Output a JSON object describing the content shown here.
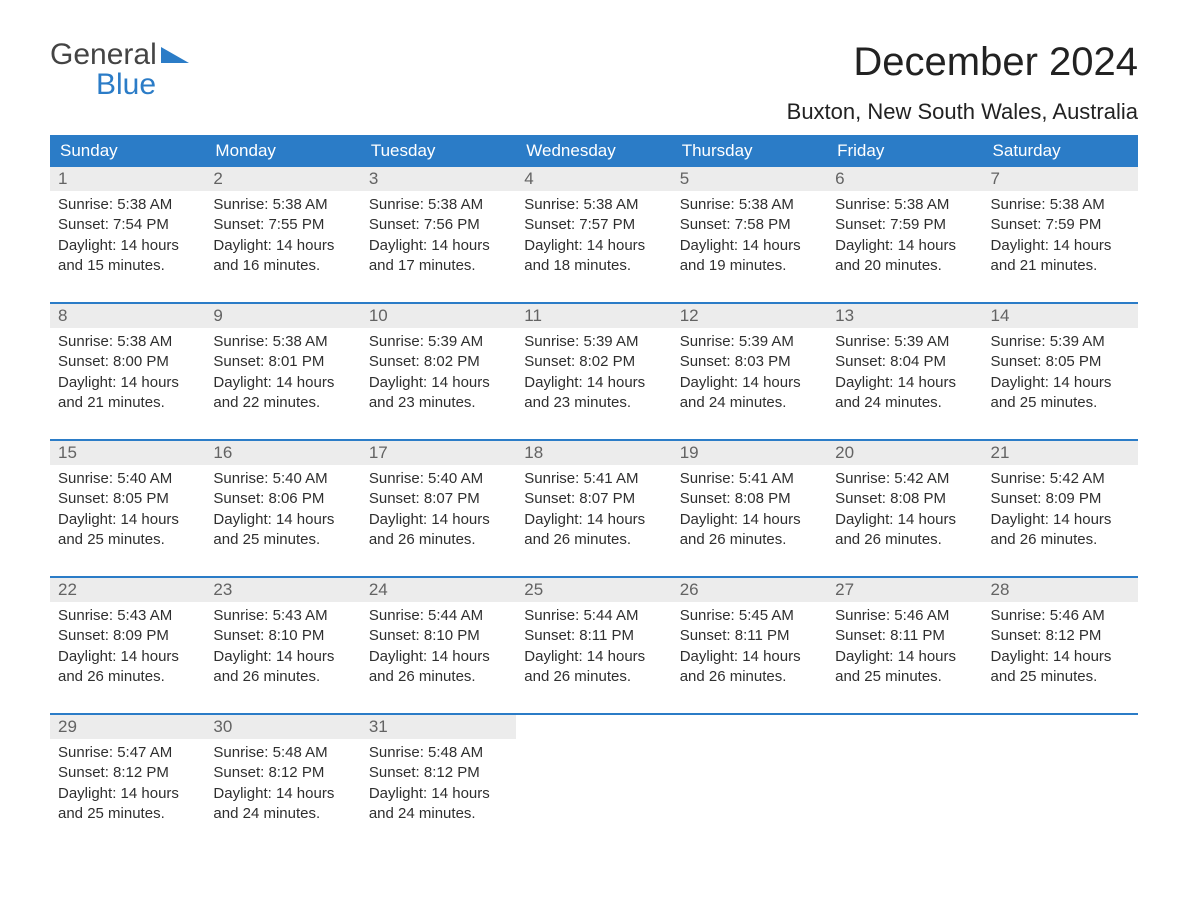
{
  "logo": {
    "line1": "General",
    "line2": "Blue"
  },
  "title": "December 2024",
  "location": "Buxton, New South Wales, Australia",
  "columns": [
    "Sunday",
    "Monday",
    "Tuesday",
    "Wednesday",
    "Thursday",
    "Friday",
    "Saturday"
  ],
  "colors": {
    "header_bg": "#2b7cc7",
    "header_text": "#ffffff",
    "daynum_bg": "#ececec",
    "daynum_text": "#636363",
    "body_text": "#2f2f2f",
    "accent": "#2b7cc7",
    "page_bg": "#ffffff"
  },
  "font": {
    "family": "Arial",
    "th_size": 17,
    "body_size": 15,
    "title_size": 40,
    "location_size": 22
  },
  "weeks": [
    [
      {
        "n": "1",
        "sr": "Sunrise: 5:38 AM",
        "ss": "Sunset: 7:54 PM",
        "d1": "Daylight: 14 hours",
        "d2": "and 15 minutes."
      },
      {
        "n": "2",
        "sr": "Sunrise: 5:38 AM",
        "ss": "Sunset: 7:55 PM",
        "d1": "Daylight: 14 hours",
        "d2": "and 16 minutes."
      },
      {
        "n": "3",
        "sr": "Sunrise: 5:38 AM",
        "ss": "Sunset: 7:56 PM",
        "d1": "Daylight: 14 hours",
        "d2": "and 17 minutes."
      },
      {
        "n": "4",
        "sr": "Sunrise: 5:38 AM",
        "ss": "Sunset: 7:57 PM",
        "d1": "Daylight: 14 hours",
        "d2": "and 18 minutes."
      },
      {
        "n": "5",
        "sr": "Sunrise: 5:38 AM",
        "ss": "Sunset: 7:58 PM",
        "d1": "Daylight: 14 hours",
        "d2": "and 19 minutes."
      },
      {
        "n": "6",
        "sr": "Sunrise: 5:38 AM",
        "ss": "Sunset: 7:59 PM",
        "d1": "Daylight: 14 hours",
        "d2": "and 20 minutes."
      },
      {
        "n": "7",
        "sr": "Sunrise: 5:38 AM",
        "ss": "Sunset: 7:59 PM",
        "d1": "Daylight: 14 hours",
        "d2": "and 21 minutes."
      }
    ],
    [
      {
        "n": "8",
        "sr": "Sunrise: 5:38 AM",
        "ss": "Sunset: 8:00 PM",
        "d1": "Daylight: 14 hours",
        "d2": "and 21 minutes."
      },
      {
        "n": "9",
        "sr": "Sunrise: 5:38 AM",
        "ss": "Sunset: 8:01 PM",
        "d1": "Daylight: 14 hours",
        "d2": "and 22 minutes."
      },
      {
        "n": "10",
        "sr": "Sunrise: 5:39 AM",
        "ss": "Sunset: 8:02 PM",
        "d1": "Daylight: 14 hours",
        "d2": "and 23 minutes."
      },
      {
        "n": "11",
        "sr": "Sunrise: 5:39 AM",
        "ss": "Sunset: 8:02 PM",
        "d1": "Daylight: 14 hours",
        "d2": "and 23 minutes."
      },
      {
        "n": "12",
        "sr": "Sunrise: 5:39 AM",
        "ss": "Sunset: 8:03 PM",
        "d1": "Daylight: 14 hours",
        "d2": "and 24 minutes."
      },
      {
        "n": "13",
        "sr": "Sunrise: 5:39 AM",
        "ss": "Sunset: 8:04 PM",
        "d1": "Daylight: 14 hours",
        "d2": "and 24 minutes."
      },
      {
        "n": "14",
        "sr": "Sunrise: 5:39 AM",
        "ss": "Sunset: 8:05 PM",
        "d1": "Daylight: 14 hours",
        "d2": "and 25 minutes."
      }
    ],
    [
      {
        "n": "15",
        "sr": "Sunrise: 5:40 AM",
        "ss": "Sunset: 8:05 PM",
        "d1": "Daylight: 14 hours",
        "d2": "and 25 minutes."
      },
      {
        "n": "16",
        "sr": "Sunrise: 5:40 AM",
        "ss": "Sunset: 8:06 PM",
        "d1": "Daylight: 14 hours",
        "d2": "and 25 minutes."
      },
      {
        "n": "17",
        "sr": "Sunrise: 5:40 AM",
        "ss": "Sunset: 8:07 PM",
        "d1": "Daylight: 14 hours",
        "d2": "and 26 minutes."
      },
      {
        "n": "18",
        "sr": "Sunrise: 5:41 AM",
        "ss": "Sunset: 8:07 PM",
        "d1": "Daylight: 14 hours",
        "d2": "and 26 minutes."
      },
      {
        "n": "19",
        "sr": "Sunrise: 5:41 AM",
        "ss": "Sunset: 8:08 PM",
        "d1": "Daylight: 14 hours",
        "d2": "and 26 minutes."
      },
      {
        "n": "20",
        "sr": "Sunrise: 5:42 AM",
        "ss": "Sunset: 8:08 PM",
        "d1": "Daylight: 14 hours",
        "d2": "and 26 minutes."
      },
      {
        "n": "21",
        "sr": "Sunrise: 5:42 AM",
        "ss": "Sunset: 8:09 PM",
        "d1": "Daylight: 14 hours",
        "d2": "and 26 minutes."
      }
    ],
    [
      {
        "n": "22",
        "sr": "Sunrise: 5:43 AM",
        "ss": "Sunset: 8:09 PM",
        "d1": "Daylight: 14 hours",
        "d2": "and 26 minutes."
      },
      {
        "n": "23",
        "sr": "Sunrise: 5:43 AM",
        "ss": "Sunset: 8:10 PM",
        "d1": "Daylight: 14 hours",
        "d2": "and 26 minutes."
      },
      {
        "n": "24",
        "sr": "Sunrise: 5:44 AM",
        "ss": "Sunset: 8:10 PM",
        "d1": "Daylight: 14 hours",
        "d2": "and 26 minutes."
      },
      {
        "n": "25",
        "sr": "Sunrise: 5:44 AM",
        "ss": "Sunset: 8:11 PM",
        "d1": "Daylight: 14 hours",
        "d2": "and 26 minutes."
      },
      {
        "n": "26",
        "sr": "Sunrise: 5:45 AM",
        "ss": "Sunset: 8:11 PM",
        "d1": "Daylight: 14 hours",
        "d2": "and 26 minutes."
      },
      {
        "n": "27",
        "sr": "Sunrise: 5:46 AM",
        "ss": "Sunset: 8:11 PM",
        "d1": "Daylight: 14 hours",
        "d2": "and 25 minutes."
      },
      {
        "n": "28",
        "sr": "Sunrise: 5:46 AM",
        "ss": "Sunset: 8:12 PM",
        "d1": "Daylight: 14 hours",
        "d2": "and 25 minutes."
      }
    ],
    [
      {
        "n": "29",
        "sr": "Sunrise: 5:47 AM",
        "ss": "Sunset: 8:12 PM",
        "d1": "Daylight: 14 hours",
        "d2": "and 25 minutes."
      },
      {
        "n": "30",
        "sr": "Sunrise: 5:48 AM",
        "ss": "Sunset: 8:12 PM",
        "d1": "Daylight: 14 hours",
        "d2": "and 24 minutes."
      },
      {
        "n": "31",
        "sr": "Sunrise: 5:48 AM",
        "ss": "Sunset: 8:12 PM",
        "d1": "Daylight: 14 hours",
        "d2": "and 24 minutes."
      },
      null,
      null,
      null,
      null
    ]
  ]
}
